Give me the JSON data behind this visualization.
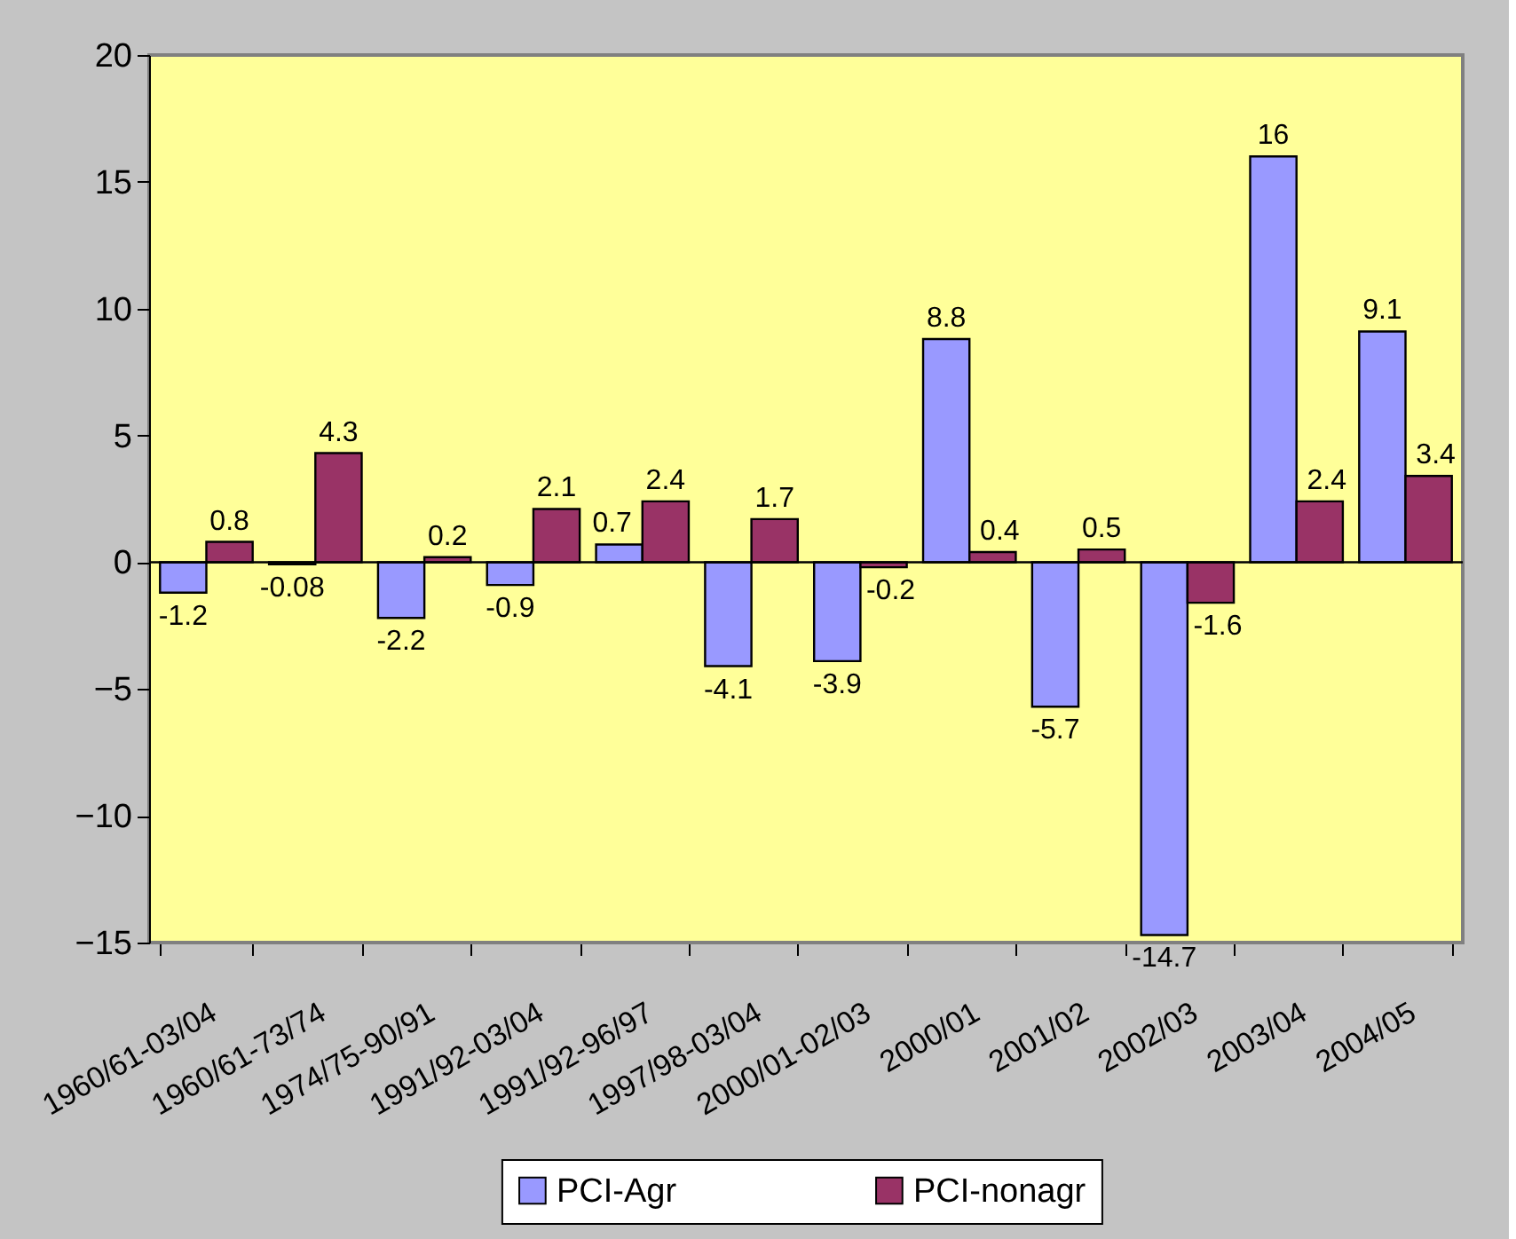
{
  "chart_data": {
    "type": "bar",
    "categories": [
      "1960/61-03/04",
      "1960/61-73/74",
      "1974/75-90/91",
      "1991/92-03/04",
      "1991/92-96/97",
      "1997/98-03/04",
      "2000/01-02/03",
      "2000/01",
      "2001/02",
      "2002/03",
      "2003/04",
      "2004/05"
    ],
    "series": [
      {
        "name": "PCI-Agr",
        "color": "#9999ff",
        "values": [
          -1.2,
          -0.08,
          -2.2,
          -0.9,
          0.7,
          -4.1,
          -3.9,
          8.8,
          -5.7,
          -14.7,
          16,
          9.1
        ]
      },
      {
        "name": "PCI-nonagr",
        "color": "#993366",
        "values": [
          0.8,
          4.3,
          0.2,
          2.1,
          2.4,
          1.7,
          -0.2,
          0.4,
          0.5,
          -1.6,
          2.4,
          3.4
        ]
      }
    ],
    "ylim": [
      -15,
      20
    ],
    "yticks": [
      -15,
      -10,
      -5,
      0,
      5,
      10,
      15,
      20
    ],
    "ref_lines": [
      {
        "axis": "y",
        "value": 0,
        "color": "#000000"
      }
    ],
    "data_labels": true,
    "grid": false,
    "legend": "bottom"
  }
}
